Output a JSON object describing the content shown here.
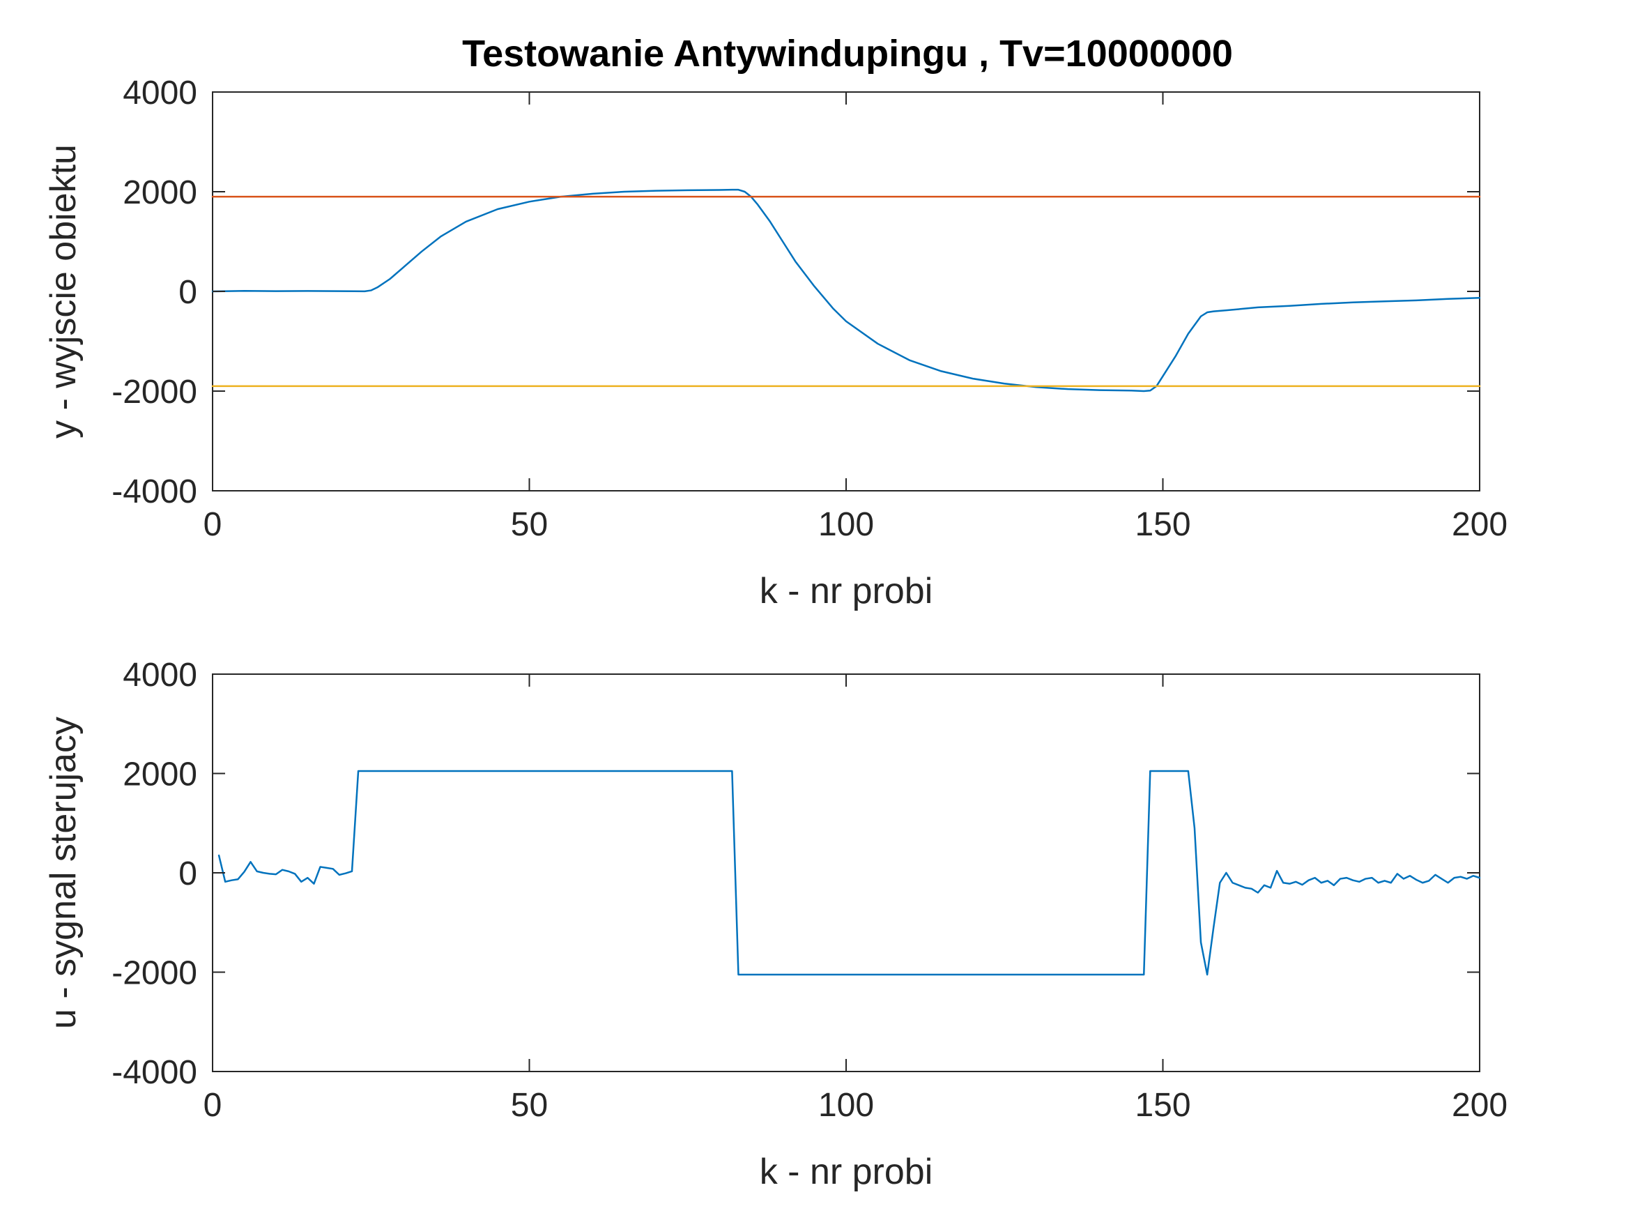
{
  "colors": {
    "axis": "#262626",
    "output": "#0072BD",
    "upper_limit": "#D95319",
    "lower_limit": "#EDB120",
    "control": "#0072BD"
  },
  "chart_data": [
    {
      "type": "line",
      "title": "Testowanie Antywindupingu  , Tv=10000000",
      "xlabel": "k - nr probi",
      "ylabel": "y - wyjscie obiektu",
      "xlim": [
        0,
        200
      ],
      "ylim": [
        -4000,
        4000
      ],
      "xticks": [
        0,
        50,
        100,
        150,
        200
      ],
      "yticks": [
        4000,
        2000,
        0,
        -2000,
        -4000
      ],
      "xtick_labels": [
        "0",
        "50",
        "100",
        "150",
        "200"
      ],
      "ytick_labels": [
        "4000",
        "2000",
        "0",
        "-2000",
        "-4000"
      ],
      "grid": false,
      "series": [
        {
          "color": "#0072BD",
          "x": [
            0,
            5,
            10,
            15,
            20,
            24,
            25,
            26,
            28,
            30,
            33,
            36,
            40,
            45,
            50,
            55,
            60,
            65,
            70,
            75,
            80,
            82,
            83,
            84,
            85,
            86,
            88,
            90,
            92,
            95,
            98,
            100,
            105,
            110,
            115,
            120,
            125,
            130,
            135,
            140,
            145,
            147,
            148,
            149,
            150,
            152,
            154,
            156,
            157,
            158,
            160,
            165,
            170,
            175,
            180,
            185,
            190,
            195,
            200
          ],
          "y": [
            0,
            10,
            5,
            8,
            5,
            2,
            20,
            80,
            250,
            470,
            800,
            1100,
            1400,
            1650,
            1800,
            1900,
            1960,
            2000,
            2020,
            2030,
            2035,
            2040,
            2040,
            2000,
            1900,
            1750,
            1400,
            1000,
            600,
            100,
            -350,
            -600,
            -1050,
            -1380,
            -1600,
            -1750,
            -1850,
            -1920,
            -1960,
            -1980,
            -1990,
            -2000,
            -1990,
            -1900,
            -1700,
            -1300,
            -850,
            -500,
            -420,
            -400,
            -380,
            -320,
            -290,
            -250,
            -220,
            -200,
            -180,
            -150,
            -130
          ]
        },
        {
          "color": "#D95319",
          "x": [
            0,
            200
          ],
          "y": [
            1900,
            1900
          ]
        },
        {
          "color": "#EDB120",
          "x": [
            0,
            200
          ],
          "y": [
            -1900,
            -1900
          ]
        }
      ]
    },
    {
      "type": "line",
      "title": "",
      "xlabel": "k - nr probi",
      "ylabel": "u - sygnal sterujacy",
      "xlim": [
        0,
        200
      ],
      "ylim": [
        -4000,
        4000
      ],
      "xticks": [
        0,
        50,
        100,
        150,
        200
      ],
      "yticks": [
        4000,
        2000,
        0,
        -2000,
        -4000
      ],
      "xtick_labels": [
        "0",
        "50",
        "100",
        "150",
        "200"
      ],
      "ytick_labels": [
        "4000",
        "2000",
        "0",
        "-2000",
        "-4000"
      ],
      "grid": false,
      "series": [
        {
          "color": "#0072BD",
          "x": [
            1,
            2,
            3,
            4,
            5,
            6,
            7,
            8,
            9,
            10,
            11,
            12,
            13,
            14,
            15,
            16,
            17,
            18,
            19,
            20,
            21,
            22,
            23,
            24,
            82,
            83,
            147,
            148,
            154,
            155,
            156,
            157,
            158,
            159,
            160,
            161,
            162,
            163,
            164,
            165,
            166,
            167,
            168,
            169,
            170,
            171,
            172,
            173,
            174,
            175,
            176,
            177,
            178,
            179,
            180,
            181,
            182,
            183,
            184,
            185,
            186,
            187,
            188,
            189,
            190,
            191,
            192,
            193,
            194,
            195,
            196,
            197,
            198,
            199,
            200
          ],
          "y": [
            350,
            -180,
            -150,
            -130,
            20,
            220,
            30,
            0,
            -20,
            -30,
            60,
            30,
            -20,
            -180,
            -100,
            -220,
            120,
            100,
            80,
            -40,
            -10,
            30,
            2050,
            2050,
            2050,
            -2050,
            -2050,
            2050,
            2050,
            900,
            -1400,
            -2050,
            -1100,
            -200,
            0,
            -200,
            -250,
            -300,
            -320,
            -400,
            -250,
            -300,
            40,
            -200,
            -220,
            -180,
            -240,
            -150,
            -100,
            -200,
            -160,
            -250,
            -120,
            -100,
            -150,
            -180,
            -120,
            -100,
            -200,
            -160,
            -200,
            -20,
            -120,
            -60,
            -140,
            -200,
            -160,
            -40,
            -120,
            -200,
            -100,
            -80,
            -120,
            -60,
            -100
          ]
        }
      ]
    }
  ]
}
